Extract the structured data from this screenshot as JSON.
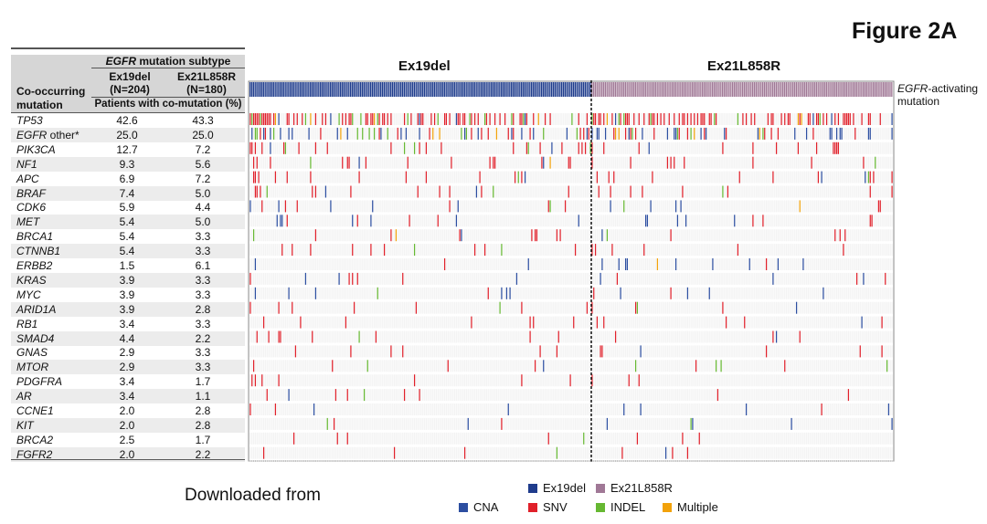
{
  "figure_title": "Figure 2A",
  "cohorts": {
    "left": "Ex19del",
    "right": "Ex21L858R"
  },
  "side_note": {
    "italic_part": "EGFR",
    "rest": "-activating mutation"
  },
  "downloaded_text": "Downloaded from",
  "table": {
    "subtype_italic": "EGFR",
    "subtype_rest": " mutation subtype",
    "col1": {
      "name": "Ex19del",
      "n": "(N=204)"
    },
    "col2": {
      "name": "Ex21L858R",
      "n": "(N=180)"
    },
    "co_label_1": "Co-occurring",
    "co_label_2": "mutation",
    "pct_label": "Patients with co-mutation (%)"
  },
  "colors": {
    "ex19del": "#1f3c8c",
    "ex21l858r": "#a07896",
    "cna": "#2c4ea0",
    "snv": "#e0202a",
    "indel": "#66b832",
    "multiple": "#f2a20a"
  },
  "legend": {
    "ex19del": "Ex19del",
    "ex21l858r": "Ex21L858R",
    "cna": "CNA",
    "snv": "SNV",
    "indel": "INDEL",
    "multiple": "Multiple"
  },
  "chart_data": {
    "type": "heatmap",
    "title": "Figure 2A",
    "groups": [
      {
        "name": "Ex19del",
        "n": 204
      },
      {
        "name": "Ex21L858R",
        "n": 180
      }
    ],
    "rows": [
      {
        "gene": "TP53",
        "suffix": "",
        "ex19del_pct": "42.6",
        "ex21l858r_pct": "43.3"
      },
      {
        "gene": "EGFR",
        "suffix": " other*",
        "ex19del_pct": "25.0",
        "ex21l858r_pct": "25.0"
      },
      {
        "gene": "PIK3CA",
        "suffix": "",
        "ex19del_pct": "12.7",
        "ex21l858r_pct": "7.2"
      },
      {
        "gene": "NF1",
        "suffix": "",
        "ex19del_pct": "9.3",
        "ex21l858r_pct": "5.6"
      },
      {
        "gene": "APC",
        "suffix": "",
        "ex19del_pct": "6.9",
        "ex21l858r_pct": "7.2"
      },
      {
        "gene": "BRAF",
        "suffix": "",
        "ex19del_pct": "7.4",
        "ex21l858r_pct": "5.0"
      },
      {
        "gene": "CDK6",
        "suffix": "",
        "ex19del_pct": "5.9",
        "ex21l858r_pct": "4.4"
      },
      {
        "gene": "MET",
        "suffix": "",
        "ex19del_pct": "5.4",
        "ex21l858r_pct": "5.0"
      },
      {
        "gene": "BRCA1",
        "suffix": "",
        "ex19del_pct": "5.4",
        "ex21l858r_pct": "3.3"
      },
      {
        "gene": "CTNNB1",
        "suffix": "",
        "ex19del_pct": "5.4",
        "ex21l858r_pct": "3.3"
      },
      {
        "gene": "ERBB2",
        "suffix": "",
        "ex19del_pct": "1.5",
        "ex21l858r_pct": "6.1"
      },
      {
        "gene": "KRAS",
        "suffix": "",
        "ex19del_pct": "3.9",
        "ex21l858r_pct": "3.3"
      },
      {
        "gene": "MYC",
        "suffix": "",
        "ex19del_pct": "3.9",
        "ex21l858r_pct": "3.3"
      },
      {
        "gene": "ARID1A",
        "suffix": "",
        "ex19del_pct": "3.9",
        "ex21l858r_pct": "2.8"
      },
      {
        "gene": "RB1",
        "suffix": "",
        "ex19del_pct": "3.4",
        "ex21l858r_pct": "3.3"
      },
      {
        "gene": "SMAD4",
        "suffix": "",
        "ex19del_pct": "4.4",
        "ex21l858r_pct": "2.2"
      },
      {
        "gene": "GNAS",
        "suffix": "",
        "ex19del_pct": "2.9",
        "ex21l858r_pct": "3.3"
      },
      {
        "gene": "MTOR",
        "suffix": "",
        "ex19del_pct": "2.9",
        "ex21l858r_pct": "3.3"
      },
      {
        "gene": "PDGFRA",
        "suffix": "",
        "ex19del_pct": "3.4",
        "ex21l858r_pct": "1.7"
      },
      {
        "gene": "AR",
        "suffix": "",
        "ex19del_pct": "3.4",
        "ex21l858r_pct": "1.1"
      },
      {
        "gene": "CCNE1",
        "suffix": "",
        "ex19del_pct": "2.0",
        "ex21l858r_pct": "2.8"
      },
      {
        "gene": "KIT",
        "suffix": "",
        "ex19del_pct": "2.0",
        "ex21l858r_pct": "2.8"
      },
      {
        "gene": "BRCA2",
        "suffix": "",
        "ex19del_pct": "2.5",
        "ex21l858r_pct": "1.7"
      },
      {
        "gene": "FGFR2",
        "suffix": "",
        "ex19del_pct": "2.0",
        "ex21l858r_pct": "2.2"
      }
    ],
    "alteration_types": [
      "CNA",
      "SNV",
      "INDEL",
      "Multiple"
    ]
  }
}
